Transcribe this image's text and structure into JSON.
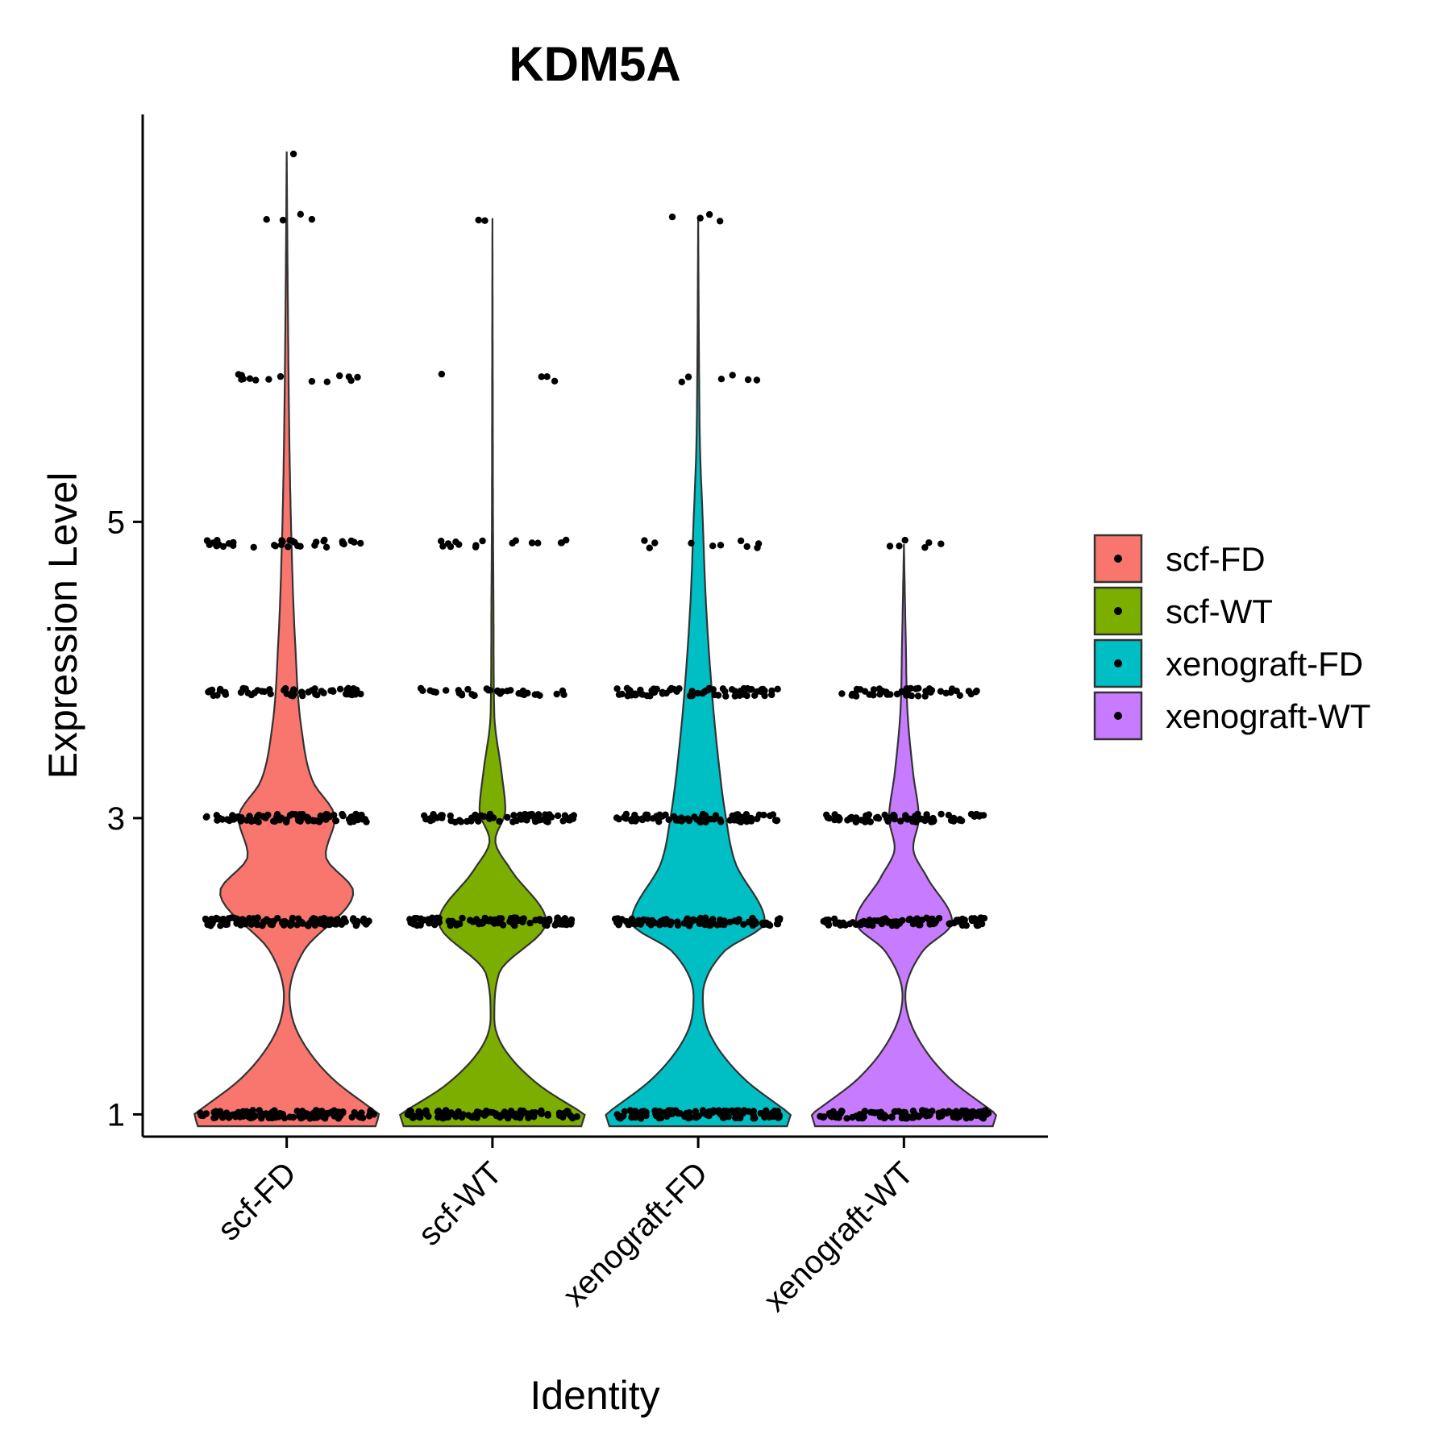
{
  "chart_data": {
    "type": "violin",
    "title": "KDM5A",
    "xlabel": "Identity",
    "ylabel": "Expression Level",
    "ylim": [
      0.85,
      7.75
    ],
    "yticks": [
      1,
      3,
      5
    ],
    "grid": false,
    "legend_position": "right",
    "categories": [
      "scf-FD",
      "scf-WT",
      "xenograft-FD",
      "xenograft-WT"
    ],
    "colors": {
      "scf-FD": "#F8766D",
      "scf-WT": "#7CAE00",
      "xenograft-FD": "#00BFC4",
      "xenograft-WT": "#C77CFF"
    },
    "series": [
      {
        "name": "scf-FD",
        "max": 7.5,
        "density": [
          [
            1,
            1.0
          ],
          [
            1.25,
            0.48
          ],
          [
            1.55,
            0.12
          ],
          [
            1.8,
            0.03
          ],
          [
            2.1,
            0.18
          ],
          [
            2.5,
            0.72
          ],
          [
            2.75,
            0.42
          ],
          [
            3.0,
            0.52
          ],
          [
            3.25,
            0.28
          ],
          [
            3.6,
            0.16
          ],
          [
            4.2,
            0.09
          ],
          [
            4.9,
            0.05
          ],
          [
            5.5,
            0.03
          ],
          [
            6.5,
            0.012
          ],
          [
            7.5,
            0.0
          ]
        ],
        "point_levels": [
          {
            "y": 1.0,
            "count": 120,
            "spread": 0.95
          },
          {
            "y": 2.3,
            "count": 110,
            "spread": 0.9
          },
          {
            "y": 3.0,
            "count": 90,
            "spread": 0.88
          },
          {
            "y": 3.85,
            "count": 55,
            "spread": 0.85
          },
          {
            "y": 4.85,
            "count": 35,
            "spread": 0.88
          },
          {
            "y": 5.97,
            "count": 14,
            "spread": 0.8
          },
          {
            "y": 7.05,
            "count": 4,
            "spread": 0.4
          },
          {
            "y": 7.5,
            "count": 1,
            "spread": 0.4
          }
        ]
      },
      {
        "name": "scf-WT",
        "max": 7.05,
        "density": [
          [
            1,
            1.0
          ],
          [
            1.2,
            0.5
          ],
          [
            1.45,
            0.12
          ],
          [
            1.65,
            0.02
          ],
          [
            1.95,
            0.07
          ],
          [
            2.3,
            0.58
          ],
          [
            2.65,
            0.2
          ],
          [
            2.85,
            0.03
          ],
          [
            3.05,
            0.14
          ],
          [
            3.3,
            0.1
          ],
          [
            3.7,
            0.02
          ],
          [
            4.3,
            0.012
          ],
          [
            5.0,
            0.006
          ],
          [
            6.0,
            0.003
          ],
          [
            7.05,
            0.0
          ]
        ],
        "point_levels": [
          {
            "y": 1.0,
            "count": 110,
            "spread": 0.92
          },
          {
            "y": 2.3,
            "count": 100,
            "spread": 0.92
          },
          {
            "y": 3.0,
            "count": 70,
            "spread": 0.88
          },
          {
            "y": 3.85,
            "count": 35,
            "spread": 0.78
          },
          {
            "y": 4.85,
            "count": 16,
            "spread": 0.82
          },
          {
            "y": 5.97,
            "count": 4,
            "spread": 0.7
          },
          {
            "y": 7.05,
            "count": 2,
            "spread": 0.22
          }
        ]
      },
      {
        "name": "xenograft-FD",
        "max": 7.05,
        "density": [
          [
            1,
            1.0
          ],
          [
            1.25,
            0.48
          ],
          [
            1.55,
            0.12
          ],
          [
            1.8,
            0.05
          ],
          [
            2.1,
            0.28
          ],
          [
            2.3,
            0.72
          ],
          [
            2.7,
            0.4
          ],
          [
            3.0,
            0.3
          ],
          [
            3.5,
            0.2
          ],
          [
            4.0,
            0.13
          ],
          [
            4.5,
            0.08
          ],
          [
            5.0,
            0.05
          ],
          [
            5.5,
            0.02
          ],
          [
            6.0,
            0.01
          ],
          [
            7.05,
            0.0
          ]
        ],
        "point_levels": [
          {
            "y": 1.0,
            "count": 115,
            "spread": 0.93
          },
          {
            "y": 2.3,
            "count": 105,
            "spread": 0.9
          },
          {
            "y": 3.0,
            "count": 80,
            "spread": 0.88
          },
          {
            "y": 3.85,
            "count": 70,
            "spread": 0.88
          },
          {
            "y": 4.85,
            "count": 10,
            "spread": 0.7
          },
          {
            "y": 5.97,
            "count": 6,
            "spread": 0.7
          },
          {
            "y": 7.05,
            "count": 4,
            "spread": 0.55
          }
        ]
      },
      {
        "name": "xenograft-WT",
        "max": 4.85,
        "density": [
          [
            1,
            1.0
          ],
          [
            1.25,
            0.48
          ],
          [
            1.55,
            0.12
          ],
          [
            1.8,
            0.015
          ],
          [
            2.1,
            0.2
          ],
          [
            2.3,
            0.52
          ],
          [
            2.6,
            0.25
          ],
          [
            2.8,
            0.1
          ],
          [
            3.0,
            0.16
          ],
          [
            3.3,
            0.1
          ],
          [
            3.7,
            0.04
          ],
          [
            4.2,
            0.02
          ],
          [
            4.85,
            0.0
          ]
        ],
        "point_levels": [
          {
            "y": 1.0,
            "count": 115,
            "spread": 0.92
          },
          {
            "y": 2.3,
            "count": 100,
            "spread": 0.88
          },
          {
            "y": 3.0,
            "count": 75,
            "spread": 0.86
          },
          {
            "y": 3.85,
            "count": 45,
            "spread": 0.82
          },
          {
            "y": 4.85,
            "count": 6,
            "spread": 0.45
          }
        ]
      }
    ]
  }
}
